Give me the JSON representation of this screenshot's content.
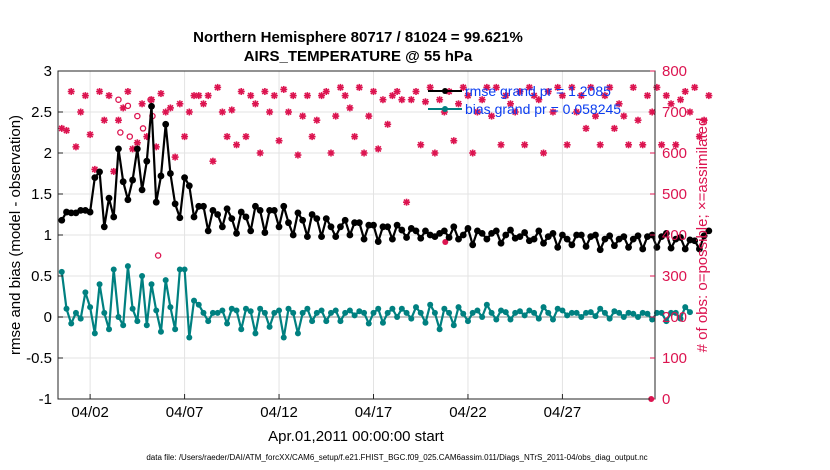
{
  "chart_data": {
    "type": "line",
    "title": "Northern Hemisphere 80717 / 81024 = 99.621%",
    "subtitle": "AIRS_TEMPERATURE @ 55 hPa",
    "xlabel": "Apr.01,2011 00:00:00 start",
    "ylabel": "rmse and bias (model - observation)",
    "y2label": "# of obs: o=possible; ×=assimilated",
    "footnote": "data file: /Users/raeder/DAI/ATM_forcXX/CAM6_setup/f.e21.FHIST_BGC.f09_025.CAM6assim.011/Diags_NTrS_2011-04/obs_diag_output.nc",
    "xlim": [
      0.3,
      31.9
    ],
    "ylim": [
      -1,
      3
    ],
    "y2lim": [
      0,
      800
    ],
    "grid": true,
    "legend_position": "top-right",
    "x_ticks": [
      {
        "value": 2,
        "label": "04/02"
      },
      {
        "value": 7,
        "label": "04/07"
      },
      {
        "value": 12,
        "label": "04/12"
      },
      {
        "value": 17,
        "label": "04/17"
      },
      {
        "value": 22,
        "label": "04/22"
      },
      {
        "value": 27,
        "label": "04/27"
      }
    ],
    "y_ticks": [
      {
        "value": -1,
        "label": "-1"
      },
      {
        "value": -0.5,
        "label": "-0.5"
      },
      {
        "value": 0,
        "label": "0"
      },
      {
        "value": 0.5,
        "label": "0.5"
      },
      {
        "value": 1,
        "label": "1"
      },
      {
        "value": 1.5,
        "label": "1.5"
      },
      {
        "value": 2,
        "label": "2"
      },
      {
        "value": 2.5,
        "label": "2.5"
      },
      {
        "value": 3,
        "label": "3"
      }
    ],
    "y2_ticks": [
      {
        "value": 0,
        "label": "0"
      },
      {
        "value": 100,
        "label": "100"
      },
      {
        "value": 200,
        "label": "200"
      },
      {
        "value": 300,
        "label": "300"
      },
      {
        "value": 400,
        "label": "400"
      },
      {
        "value": 500,
        "label": "500"
      },
      {
        "value": 600,
        "label": "600"
      },
      {
        "value": 700,
        "label": "700"
      },
      {
        "value": 800,
        "label": "800"
      }
    ],
    "series": [
      {
        "name": "rmse grand pr = 1.2085",
        "color": "#000000",
        "axis": "left",
        "x_start": 0.5,
        "x_step": 0.25,
        "values": [
          1.18,
          1.28,
          1.27,
          1.27,
          1.3,
          1.3,
          1.28,
          1.7,
          1.77,
          1.1,
          1.45,
          1.22,
          2.05,
          1.65,
          1.43,
          1.67,
          2.05,
          1.55,
          1.9,
          2.57,
          1.4,
          1.72,
          2.35,
          1.75,
          1.38,
          1.21,
          1.7,
          1.6,
          1.22,
          1.35,
          1.35,
          1.05,
          1.3,
          1.25,
          1.1,
          1.32,
          1.2,
          1.02,
          1.28,
          1.22,
          1.05,
          1.35,
          1.3,
          1.03,
          1.3,
          1.3,
          1.1,
          1.35,
          1.15,
          1.0,
          1.27,
          1.18,
          0.98,
          1.25,
          1.2,
          0.98,
          1.2,
          1.1,
          0.98,
          1.1,
          1.18,
          1.0,
          1.15,
          1.15,
          0.95,
          1.12,
          1.12,
          0.92,
          1.1,
          1.1,
          0.95,
          1.12,
          1.06,
          0.97,
          1.08,
          1.05,
          0.96,
          1.05,
          1.0,
          0.98,
          1.02,
          1.05,
          0.97,
          1.1,
          0.95,
          1.0,
          1.08,
          0.88,
          1.05,
          1.02,
          0.95,
          1.02,
          1.05,
          0.9,
          1.0,
          1.06,
          0.96,
          0.98,
          1.03,
          0.93,
          0.95,
          1.05,
          0.9,
          0.98,
          1.02,
          0.85,
          1.0,
          0.95,
          0.88,
          1.0,
          1.0,
          0.86,
          0.98,
          1.0,
          0.82,
          0.95,
          0.99,
          0.87,
          0.95,
          0.98,
          0.85,
          0.95,
          0.99,
          0.83,
          0.98,
          1.0,
          0.85,
          0.98,
          1.02,
          0.84,
          0.95,
          0.97,
          0.83,
          0.94,
          0.93,
          0.83,
          0.99,
          1.05
        ]
      },
      {
        "name": "bias grand pr = 0.058245",
        "color": "#008080",
        "axis": "left",
        "x_start": 0.5,
        "x_step": 0.25,
        "values": [
          0.55,
          0.1,
          -0.08,
          0.05,
          -0.02,
          0.3,
          0.12,
          -0.2,
          0.4,
          0.05,
          -0.15,
          0.58,
          0.0,
          -0.1,
          0.62,
          0.1,
          -0.05,
          0.5,
          -0.1,
          0.4,
          0.08,
          -0.18,
          0.45,
          0.12,
          -0.15,
          0.58,
          0.58,
          -0.25,
          0.2,
          0.15,
          0.05,
          -0.05,
          0.05,
          0.05,
          0.08,
          -0.08,
          0.1,
          0.08,
          -0.15,
          0.1,
          0.07,
          -0.2,
          0.1,
          0.05,
          -0.12,
          0.05,
          0.08,
          -0.25,
          0.1,
          0.05,
          -0.2,
          0.05,
          0.1,
          -0.05,
          0.05,
          0.08,
          -0.05,
          0.05,
          0.08,
          -0.05,
          0.05,
          0.08,
          0.02,
          0.07,
          0.05,
          -0.08,
          0.05,
          0.1,
          -0.07,
          0.05,
          0.1,
          0.0,
          0.1,
          0.05,
          -0.02,
          0.12,
          0.05,
          -0.07,
          0.15,
          0.05,
          -0.15,
          0.1,
          0.05,
          -0.1,
          0.12,
          0.04,
          -0.05,
          0.05,
          0.08,
          0.0,
          0.15,
          0.05,
          -0.03,
          0.08,
          0.06,
          -0.03,
          0.05,
          0.07,
          0.02,
          0.08,
          0.05,
          -0.02,
          0.12,
          0.05,
          -0.03,
          0.1,
          0.08,
          0.02,
          0.05,
          0.05,
          0.0,
          0.05,
          0.06,
          0.01,
          0.1,
          0.05,
          -0.02,
          0.07,
          0.05,
          0.0,
          0.05,
          0.04,
          0.0,
          0.05,
          0.04,
          -0.03,
          0.05,
          0.05,
          -0.05,
          0.05,
          0.05,
          -0.02,
          0.12,
          0.06
        ]
      },
      {
        "name": "assimilated",
        "color": "#dc1450",
        "axis": "right",
        "x_start": 0.5,
        "x_step": 0.25,
        "values": [
          660,
          655,
          750,
          615,
          700,
          740,
          645,
          560,
          750,
          680,
          740,
          555,
          680,
          710,
          750,
          610,
          625,
          720,
          640,
          730,
          615,
          745,
          700,
          710,
          590,
          720,
          640,
          700,
          740,
          740,
          720,
          740,
          580,
          760,
          700,
          640,
          705,
          620,
          750,
          640,
          740,
          720,
          600,
          750,
          700,
          740,
          630,
          755,
          700,
          740,
          595,
          690,
          740,
          640,
          680,
          740,
          750,
          600,
          690,
          760,
          740,
          710,
          640,
          760,
          600,
          690,
          750,
          610,
          730,
          670,
          740,
          750,
          730,
          480,
          730,
          750,
          620,
          725,
          760,
          600,
          730,
          700,
          750,
          630,
          720,
          760,
          740,
          600,
          700,
          730,
          760,
          690,
          760,
          620,
          740,
          720,
          700,
          750,
          620,
          760,
          740,
          730,
          600,
          750,
          700,
          760,
          740,
          620,
          760,
          700,
          740,
          660,
          760,
          690,
          620,
          740,
          760,
          660,
          720,
          690,
          620,
          760,
          680,
          620,
          740,
          700,
          760,
          620,
          740,
          720,
          620,
          730,
          750,
          700,
          760,
          640,
          680,
          740
        ]
      },
      {
        "name": "possible",
        "color": "#dc1450",
        "axis": "right",
        "points": [
          [
            3.5,
            730
          ],
          [
            4.0,
            715
          ],
          [
            3.6,
            650
          ],
          [
            4.1,
            640
          ],
          [
            4.5,
            690
          ],
          [
            4.8,
            660
          ],
          [
            5.2,
            730
          ],
          [
            5.6,
            350
          ],
          [
            5.3,
            690
          ]
        ]
      }
    ],
    "extra_points": [
      {
        "x": 20.8,
        "y": 383,
        "axis": "right"
      },
      {
        "x": 31.7,
        "y": 0,
        "axis": "right"
      }
    ]
  }
}
